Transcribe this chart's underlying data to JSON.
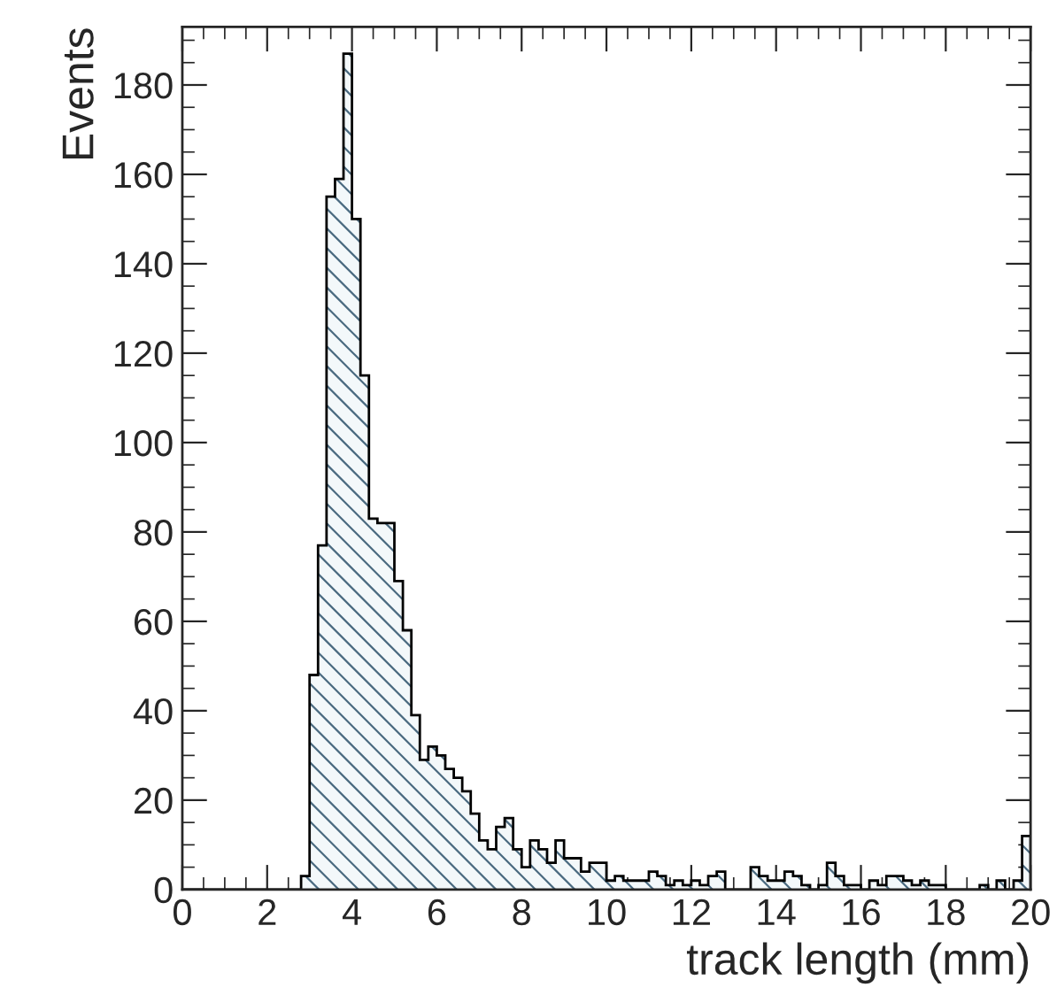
{
  "chart_data": {
    "type": "histogram",
    "xlabel": "track length (mm)",
    "ylabel": "Events",
    "bins": [
      0,
      0.2,
      0.4,
      0.6,
      0.8,
      1,
      1.2,
      1.4,
      1.6,
      1.8,
      2,
      2.2,
      2.4,
      2.6,
      2.8,
      3,
      3.2,
      3.4,
      3.6,
      3.8,
      4,
      4.2,
      4.4,
      4.6,
      4.8,
      5,
      5.2,
      5.4,
      5.6,
      5.8,
      6,
      6.2,
      6.4,
      6.6,
      6.8,
      7,
      7.2,
      7.4,
      7.6,
      7.8,
      8,
      8.2,
      8.4,
      8.6,
      8.8,
      9,
      9.2,
      9.4,
      9.6,
      9.8,
      10,
      10.2,
      10.4,
      10.6,
      10.8,
      11,
      11.2,
      11.4,
      11.6,
      11.8,
      12,
      12.2,
      12.4,
      12.6,
      12.8,
      13,
      13.2,
      13.4,
      13.6,
      13.8,
      14,
      14.2,
      14.4,
      14.6,
      14.8,
      15,
      15.2,
      15.4,
      15.6,
      15.8,
      16,
      16.2,
      16.4,
      16.6,
      16.8,
      17,
      17.2,
      17.4,
      17.6,
      17.8,
      18,
      18.2,
      18.4,
      18.6,
      18.8,
      19,
      19.2,
      19.4,
      19.6,
      19.8,
      20
    ],
    "values": [
      0,
      0,
      0,
      0,
      0,
      0,
      0,
      0,
      0,
      0,
      0,
      0,
      0,
      0,
      3,
      48,
      77,
      155,
      159,
      187,
      150,
      115,
      83,
      82,
      82,
      69,
      58,
      39,
      29,
      32,
      30,
      27,
      25,
      22,
      17,
      11,
      9,
      14,
      16,
      9,
      5,
      11,
      9,
      6,
      11,
      7,
      7,
      4,
      6,
      6,
      2,
      3,
      2,
      2,
      2,
      4,
      3,
      1,
      2,
      1,
      2,
      1,
      3,
      4,
      0,
      0,
      0,
      5,
      3,
      2,
      2,
      4,
      3,
      1,
      0,
      1,
      6,
      3,
      1,
      1,
      0,
      2,
      1,
      3,
      3,
      2,
      1,
      2,
      1,
      1,
      0,
      0,
      0,
      0,
      1,
      0,
      2,
      0,
      2,
      12
    ],
    "color": "#000000",
    "xlim": [
      0,
      20
    ],
    "ylim": [
      0,
      193
    ],
    "xticks": [
      0,
      2,
      4,
      6,
      8,
      10,
      12,
      14,
      16,
      18,
      20
    ],
    "yticks": [
      0,
      20,
      40,
      60,
      80,
      100,
      120,
      140,
      160,
      180
    ],
    "grid": false
  }
}
